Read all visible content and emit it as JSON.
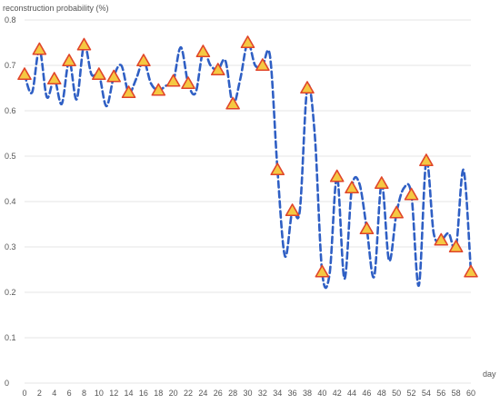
{
  "chart_data": {
    "type": "line",
    "title": "",
    "ylabel": "reconstruction probability (%)",
    "xlabel": "day",
    "xlim": [
      0,
      60
    ],
    "ylim": [
      0,
      0.8
    ],
    "x_ticks": [
      0,
      2,
      4,
      6,
      8,
      10,
      12,
      14,
      16,
      18,
      20,
      22,
      24,
      26,
      28,
      30,
      32,
      34,
      36,
      38,
      40,
      42,
      44,
      46,
      48,
      50,
      52,
      54,
      56,
      58,
      60
    ],
    "y_ticks": [
      0,
      0.1,
      0.2,
      0.3,
      0.4,
      0.5,
      0.6,
      0.7,
      0.8
    ],
    "grid": true,
    "series": [
      {
        "line_style": "dashed",
        "color": "#2f5fc4",
        "x": [
          0,
          1,
          2,
          3,
          4,
          5,
          6,
          7,
          8,
          9,
          10,
          11,
          12,
          13,
          14,
          15,
          16,
          17,
          18,
          19,
          20,
          21,
          22,
          23,
          24,
          25,
          26,
          27,
          28,
          29,
          30,
          31,
          32,
          33,
          34,
          35,
          36,
          37,
          38,
          39,
          40,
          41,
          42,
          43,
          44,
          45,
          46,
          47,
          48,
          49,
          50,
          51,
          52,
          53,
          54,
          55,
          56,
          57,
          58,
          59,
          60
        ],
        "y": [
          0.68,
          0.64,
          0.735,
          0.63,
          0.67,
          0.615,
          0.71,
          0.625,
          0.745,
          0.68,
          0.68,
          0.61,
          0.675,
          0.7,
          0.64,
          0.67,
          0.71,
          0.66,
          0.645,
          0.655,
          0.665,
          0.74,
          0.66,
          0.64,
          0.73,
          0.7,
          0.69,
          0.71,
          0.615,
          0.67,
          0.75,
          0.7,
          0.7,
          0.72,
          0.47,
          0.28,
          0.38,
          0.38,
          0.65,
          0.55,
          0.245,
          0.24,
          0.455,
          0.23,
          0.43,
          0.44,
          0.34,
          0.235,
          0.44,
          0.27,
          0.375,
          0.43,
          0.415,
          0.215,
          0.49,
          0.33,
          0.315,
          0.33,
          0.3,
          0.47,
          0.245
        ]
      },
      {
        "marker": "triangle",
        "fill_color": "#f5c842",
        "edge_color": "#e0452a",
        "x": [
          0,
          2,
          4,
          6,
          8,
          10,
          12,
          14,
          16,
          18,
          20,
          22,
          24,
          26,
          28,
          30,
          32,
          34,
          36,
          38,
          40,
          42,
          44,
          46,
          48,
          50,
          52,
          54,
          56,
          58,
          60
        ],
        "y": [
          0.68,
          0.735,
          0.67,
          0.71,
          0.745,
          0.68,
          0.675,
          0.64,
          0.71,
          0.645,
          0.665,
          0.66,
          0.73,
          0.69,
          0.615,
          0.75,
          0.7,
          0.47,
          0.38,
          0.65,
          0.245,
          0.455,
          0.43,
          0.34,
          0.44,
          0.375,
          0.415,
          0.49,
          0.315,
          0.3,
          0.245
        ]
      }
    ]
  }
}
